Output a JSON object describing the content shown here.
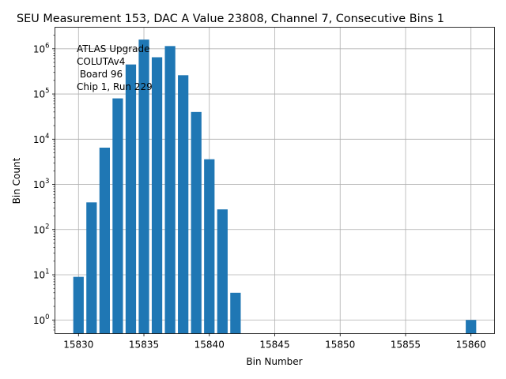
{
  "chart_data": {
    "type": "bar",
    "title": "SEU Measurement 153, DAC A Value 23808, Channel 7, Consecutive Bins 1",
    "xlabel": "Bin Number",
    "ylabel": "Bin Count",
    "yscale": "log",
    "ylim": [
      0.5,
      3000000
    ],
    "xlim": [
      15828.2,
      15861.8
    ],
    "grid": true,
    "bar_color": "#1f77b4",
    "x": [
      15830,
      15831,
      15832,
      15833,
      15834,
      15835,
      15836,
      15837,
      15838,
      15839,
      15840,
      15841,
      15842,
      15860
    ],
    "values": [
      9,
      400,
      6500,
      80000,
      450000,
      1600000,
      650000,
      1150000,
      260000,
      40000,
      3600,
      280,
      4,
      1
    ],
    "x_ticks": [
      15830,
      15835,
      15840,
      15845,
      15850,
      15855,
      15860
    ],
    "x_tick_labels": [
      "15830",
      "15835",
      "15840",
      "15845",
      "15850",
      "15855",
      "15860"
    ],
    "y_ticks": [
      {
        "base": "10",
        "exp": "0"
      },
      {
        "base": "10",
        "exp": "1"
      },
      {
        "base": "10",
        "exp": "2"
      },
      {
        "base": "10",
        "exp": "3"
      },
      {
        "base": "10",
        "exp": "4"
      },
      {
        "base": "10",
        "exp": "5"
      },
      {
        "base": "10",
        "exp": "6"
      }
    ],
    "annotation": [
      "ATLAS Upgrade",
      "COLUTAv4",
      " Board 96",
      "Chip 1, Run 229"
    ]
  }
}
